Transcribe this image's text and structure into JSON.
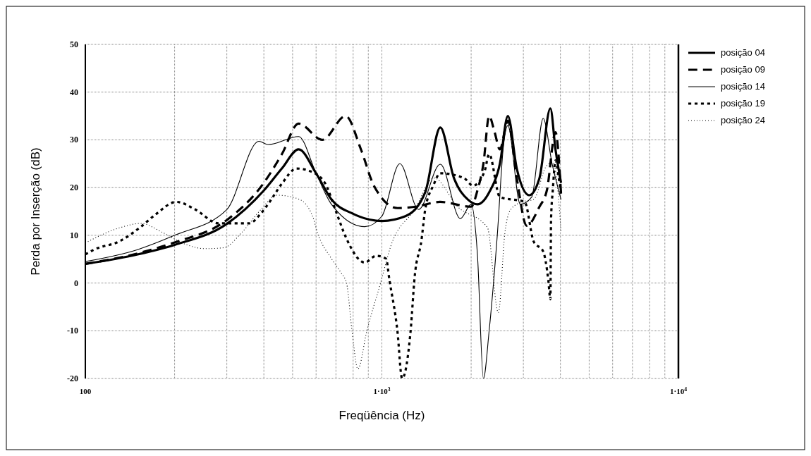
{
  "chart_data": {
    "type": "line",
    "xlabel": "Freqüência (Hz)",
    "ylabel": "Perda por Inserção (dB)",
    "log": "x",
    "grid": true,
    "legend": "top right",
    "xlim": [
      100,
      10000
    ],
    "ylim": [
      -20,
      50
    ],
    "xticks": [
      {
        "value": 100,
        "label": "100"
      },
      {
        "value": 200,
        "label": null
      },
      {
        "value": 300,
        "label": null
      },
      {
        "value": 400,
        "label": null
      },
      {
        "value": 500,
        "label": null
      },
      {
        "value": 600,
        "label": null
      },
      {
        "value": 700,
        "label": null
      },
      {
        "value": 800,
        "label": null
      },
      {
        "value": 900,
        "label": null
      },
      {
        "value": 1000,
        "label": "1·10$^{3}$"
      },
      {
        "value": 2000,
        "label": null
      },
      {
        "value": 3000,
        "label": null
      },
      {
        "value": 4000,
        "label": null
      },
      {
        "value": 5000,
        "label": null
      },
      {
        "value": 6000,
        "label": null
      },
      {
        "value": 7000,
        "label": null
      },
      {
        "value": 8000,
        "label": null
      },
      {
        "value": 9000,
        "label": null
      },
      {
        "value": 10000,
        "label": "1·10$^{4}$"
      }
    ],
    "yticks": [
      -20,
      -10,
      0,
      10,
      20,
      30,
      40,
      50
    ],
    "series": [
      {
        "name": "posição 04",
        "color": "#000000",
        "line_style": "solid",
        "x": [
          100,
          150,
          200,
          300,
          400,
          460,
          524,
          600,
          676,
          800,
          1000,
          1200,
          1400,
          1574,
          1750,
          1950,
          2100,
          2300,
          2500,
          2660,
          2850,
          3140,
          3400,
          3700,
          3850,
          4020
        ],
        "values": [
          4,
          6,
          8,
          12.4,
          19.4,
          24,
          28,
          23,
          17.5,
          14.5,
          13,
          14,
          19,
          32.6,
          22,
          17.5,
          16.5,
          19,
          25,
          35,
          24,
          18.4,
          22,
          36.6,
          28,
          21
        ]
      },
      {
        "name": "posição 09",
        "color": "#000000",
        "line_style": "dashed",
        "x": [
          100,
          150,
          200,
          300,
          400,
          460,
          524,
          630,
          755,
          850,
          940,
          1130,
          1300,
          1570,
          2000,
          2100,
          2200,
          2300,
          2400,
          2500,
          2660,
          2850,
          3080,
          3400,
          3600,
          3850,
          4020
        ],
        "values": [
          4,
          6.2,
          8.5,
          13.2,
          21,
          27,
          33.4,
          30,
          35,
          28,
          20.4,
          15.7,
          16,
          17,
          16,
          19.4,
          25,
          35,
          31.6,
          28,
          34,
          22,
          12,
          16,
          19.4,
          31.6,
          18.7
        ]
      },
      {
        "name": "posição 14",
        "color": "#000000",
        "line_style": "solid",
        "x": [
          100,
          150,
          200,
          300,
          385,
          413,
          524,
          600,
          676,
          876,
          1000,
          1150,
          1330,
          1574,
          1840,
          2000,
          2100,
          2200,
          2300,
          2450,
          2570,
          2660,
          2930,
          3200,
          3500,
          3750,
          4020
        ],
        "values": [
          4.5,
          7,
          10,
          15.4,
          29.7,
          29,
          30.7,
          23,
          16.5,
          11.8,
          14,
          25,
          15.4,
          24.9,
          13.5,
          16.5,
          6,
          -20,
          -10,
          10,
          28.7,
          33,
          16.5,
          18,
          34.5,
          25,
          17.5
        ]
      },
      {
        "name": "posição 19",
        "color": "#000000",
        "line_style": "dotted",
        "x": [
          100,
          107,
          131,
          154,
          172,
          203,
          235,
          281,
          357,
          391,
          413,
          461,
          515,
          575,
          642,
          704,
          756,
          876,
          957,
          1033,
          1060,
          1128,
          1170,
          1250,
          1290,
          1360,
          1400,
          1490,
          1574,
          1890,
          2030,
          2220,
          2300,
          2500,
          3030,
          3250,
          3500,
          3640,
          3700,
          3720,
          3770,
          3850,
          3950,
          4020
        ],
        "values": [
          6,
          7,
          8.8,
          11.8,
          14.3,
          17,
          15.4,
          12.5,
          12.5,
          14.6,
          16.5,
          20.9,
          24,
          23.4,
          21,
          14.6,
          9.6,
          4.3,
          5.7,
          5.1,
          0.7,
          -10,
          -20,
          -10,
          1.3,
          9,
          15.4,
          20.4,
          23,
          22,
          20.4,
          23.4,
          27,
          18,
          17,
          8.7,
          6.6,
          0.7,
          -3.4,
          13.5,
          19.4,
          25.7,
          22,
          18.7
        ]
      },
      {
        "name": "posição 24",
        "color": "#000000",
        "line_style": "dotted",
        "x": [
          100,
          131,
          154,
          182,
          218,
          253,
          293,
          337,
          391,
          443,
          524,
          584,
          606,
          676,
          727,
          760,
          793,
          830,
          890,
          990,
          1070,
          1290,
          1500,
          1800,
          2270,
          2470,
          2600,
          2720,
          2970,
          3250,
          3570,
          3770,
          3900,
          4020
        ],
        "values": [
          8.4,
          11.6,
          12.5,
          10.6,
          8.1,
          7.2,
          7.4,
          10.6,
          15.4,
          18.4,
          17.6,
          14,
          10.6,
          5.1,
          2.2,
          0,
          -10,
          -18,
          -10,
          0,
          7.6,
          15.4,
          22,
          16,
          11.6,
          -6.2,
          10.6,
          15.4,
          17,
          17.5,
          24.3,
          25.3,
          20.9,
          10.6
        ]
      }
    ]
  }
}
